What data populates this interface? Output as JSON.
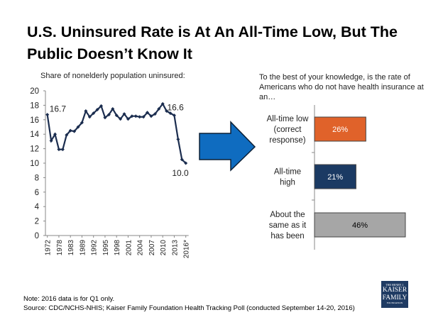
{
  "title": "U.S. Uninsured Rate is At An All-Time Low, But The Public Doesn’t Know It",
  "chart_data": [
    {
      "type": "line",
      "title": "Share of nonelderly population uninsured:",
      "ylim": [
        0,
        20
      ],
      "yticks": [
        0,
        2,
        4,
        6,
        8,
        10,
        12,
        14,
        16,
        18,
        20
      ],
      "xtick_labels": [
        "1972",
        "1978",
        "1983",
        "1989",
        "1992",
        "1995",
        "1998",
        "2001",
        "2004",
        "2007",
        "2010",
        "2013",
        "2016*"
      ],
      "xtick_every": 3,
      "values": [
        16.7,
        13.1,
        14.0,
        11.9,
        11.9,
        13.9,
        14.5,
        14.4,
        15.0,
        15.6,
        17.2,
        16.4,
        16.9,
        17.4,
        17.9,
        16.3,
        16.7,
        17.5,
        16.6,
        16.1,
        16.8,
        16.1,
        16.5,
        16.5,
        16.4,
        16.4,
        17.0,
        16.5,
        16.8,
        17.5,
        18.2,
        17.2,
        16.9,
        16.6,
        13.3,
        10.5,
        10.0
      ],
      "annotations": [
        {
          "index": 0,
          "text": "16.7"
        },
        {
          "index": 33,
          "text": "16.6"
        },
        {
          "index": 36,
          "text": "10.0"
        }
      ],
      "series_color": "#1b2d4f"
    },
    {
      "type": "bar",
      "title": "To the best of your knowledge, is the rate of Americans who do not have health insurance at an…",
      "categories": [
        [
          "All-time low",
          "(correct",
          "response)"
        ],
        [
          "All-time",
          "high"
        ],
        [
          "About the",
          "same as it",
          "has been"
        ]
      ],
      "values": [
        26,
        21,
        46
      ],
      "labels": [
        "26%",
        "21%",
        "46%"
      ],
      "colors": [
        "#e0622a",
        "#1b3a63",
        "#a6a6a6"
      ],
      "label_colors": [
        "#fff",
        "#fff",
        "#000"
      ]
    }
  ],
  "arrow_color": "#0f6cc0",
  "notes": [
    "Note: 2016 data is for Q1 only.",
    "Source: CDC/NCHS-NHIS; Kaiser Family Foundation Health Tracking Poll (conducted September  14-20, 2016)"
  ],
  "logo": [
    "THE HENRY J.",
    "KAISER",
    "FAMILY",
    "FOUNDATION"
  ]
}
